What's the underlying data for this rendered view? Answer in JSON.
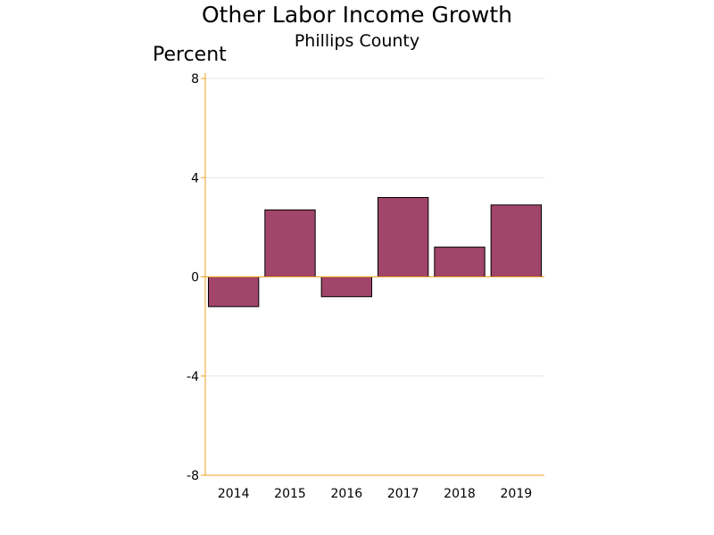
{
  "chart_data": {
    "type": "bar",
    "title": "Other Labor Income Growth",
    "subtitle": "Phillips County",
    "ylabel": "Percent",
    "xlabel": "",
    "categories": [
      "2014",
      "2015",
      "2016",
      "2017",
      "2018",
      "2019"
    ],
    "values": [
      -1.2,
      2.7,
      -0.8,
      3.2,
      1.2,
      2.9
    ],
    "ylim": [
      -8,
      8
    ],
    "yticks": [
      8,
      4,
      0,
      -4,
      -8
    ],
    "grid": true,
    "legend": "none",
    "colors": {
      "bar": "#a1456a",
      "bar_outline": "#000000",
      "axis": "#f0a020",
      "grid": "#e6e6e6"
    }
  }
}
